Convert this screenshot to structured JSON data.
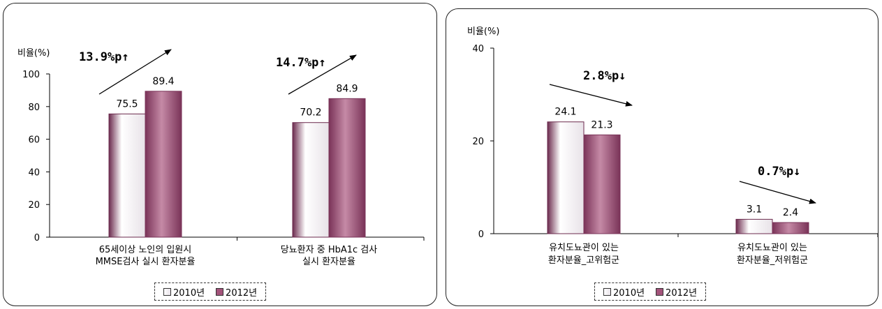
{
  "colors": {
    "series_2010_edge": "#6b2a4d",
    "series_2010_center": "#ffffff",
    "series_2012_edge": "#7a3358",
    "series_2012_center": "#c58aa6",
    "axis": "#000000",
    "arrow": "#000000"
  },
  "chart_data": [
    {
      "type": "bar",
      "ylabel": "비율(%)",
      "ylim": [
        0,
        100
      ],
      "yticks": [
        "0",
        "20",
        "40",
        "60",
        "80",
        "100"
      ],
      "categories": [
        [
          "65세이상 노인의 입원시",
          "MMSE검사 실시 환자분율"
        ],
        [
          "당뇨환자 중 HbA1c 검사",
          "실시 환자분율"
        ]
      ],
      "series": [
        {
          "name": "2010년",
          "values": [
            75.5,
            70.2
          ],
          "labels": [
            "75.5",
            "70.2"
          ]
        },
        {
          "name": "2012년",
          "values": [
            89.4,
            84.9
          ],
          "labels": [
            "89.4",
            "84.9"
          ]
        }
      ],
      "annotations": [
        "13.9%p↑",
        "14.7%p↑"
      ],
      "legend": [
        "2010년",
        "2012년"
      ],
      "legend_position": "bottom-center",
      "grid": false
    },
    {
      "type": "bar",
      "ylabel": "비율(%)",
      "ylim": [
        0,
        40
      ],
      "yticks": [
        "0",
        "20",
        "40"
      ],
      "categories": [
        [
          "유치도뇨관이 있는",
          "환자분율_고위험군"
        ],
        [
          "유치도뇨관이 있는",
          "환자분율_저위험군"
        ]
      ],
      "series": [
        {
          "name": "2010년",
          "values": [
            24.1,
            3.1
          ],
          "labels": [
            "24.1",
            "3.1"
          ]
        },
        {
          "name": "2012년",
          "values": [
            21.3,
            2.4
          ],
          "labels": [
            "21.3",
            "2.4"
          ]
        }
      ],
      "annotations": [
        "2.8%p↓",
        "0.7%p↓"
      ],
      "legend": [
        "2010년",
        "2012년"
      ],
      "legend_position": "bottom-center",
      "grid": false
    }
  ]
}
